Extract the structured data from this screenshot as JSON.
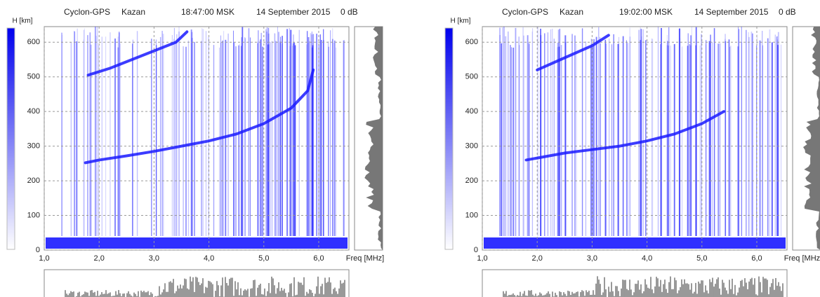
{
  "chart_data": [
    {
      "type": "line",
      "station": "Cyclon-GPS",
      "city": "Kazan",
      "time": "18:47:00 MSK",
      "date": "14 September 2015",
      "gain": "0 dB",
      "y_label": "H [km]",
      "x_label": "Freq [MHz]",
      "xlim": [
        1.0,
        6.55
      ],
      "ylim": [
        0,
        645
      ],
      "xticks": [
        {
          "value": 1,
          "label": "1,0"
        },
        {
          "value": 2,
          "label": "2,0"
        },
        {
          "value": 3,
          "label": "3,0"
        },
        {
          "value": 4,
          "label": "4,0"
        },
        {
          "value": 5,
          "label": "5,0"
        },
        {
          "value": 6,
          "label": "6,0"
        }
      ],
      "yticks": [
        0,
        100,
        200,
        300,
        400,
        500,
        600
      ],
      "grid": true,
      "series": [
        {
          "color": "#1a1aff",
          "x": [
            1.75,
            2.0,
            2.5,
            3.0,
            3.5,
            4.0,
            4.5,
            5.0,
            5.5,
            5.8,
            5.9
          ],
          "values": [
            252,
            260,
            272,
            285,
            300,
            315,
            335,
            365,
            410,
            460,
            520
          ]
        },
        {
          "color": "#1a1aff",
          "x": [
            1.8,
            2.2,
            2.6,
            3.0,
            3.4,
            3.6
          ],
          "values": [
            505,
            525,
            550,
            575,
            600,
            630
          ]
        }
      ]
    },
    {
      "type": "line",
      "station": "Cyclon-GPS",
      "city": "Kazan",
      "time": "19:02:00 MSK",
      "date": "14 September 2015",
      "gain": "0 dB",
      "y_label": "H [km]",
      "x_label": "Freq [MHz]",
      "xlim": [
        1.0,
        6.55
      ],
      "ylim": [
        0,
        645
      ],
      "xticks": [
        {
          "value": 1,
          "label": "1,0"
        },
        {
          "value": 2,
          "label": "2,0"
        },
        {
          "value": 3,
          "label": "3,0"
        },
        {
          "value": 4,
          "label": "4,0"
        },
        {
          "value": 5,
          "label": "5,0"
        },
        {
          "value": 6,
          "label": "6,0"
        }
      ],
      "yticks": [
        0,
        100,
        200,
        300,
        400,
        500,
        600
      ],
      "grid": true,
      "series": [
        {
          "color": "#1a1aff",
          "x": [
            1.8,
            2.5,
            3.0,
            3.5,
            4.0,
            4.5,
            5.0,
            5.4
          ],
          "values": [
            260,
            280,
            290,
            300,
            315,
            335,
            365,
            400
          ]
        },
        {
          "color": "#1a1aff",
          "x": [
            2.0,
            2.5,
            3.0,
            3.3
          ],
          "values": [
            520,
            555,
            590,
            620
          ]
        }
      ]
    }
  ]
}
